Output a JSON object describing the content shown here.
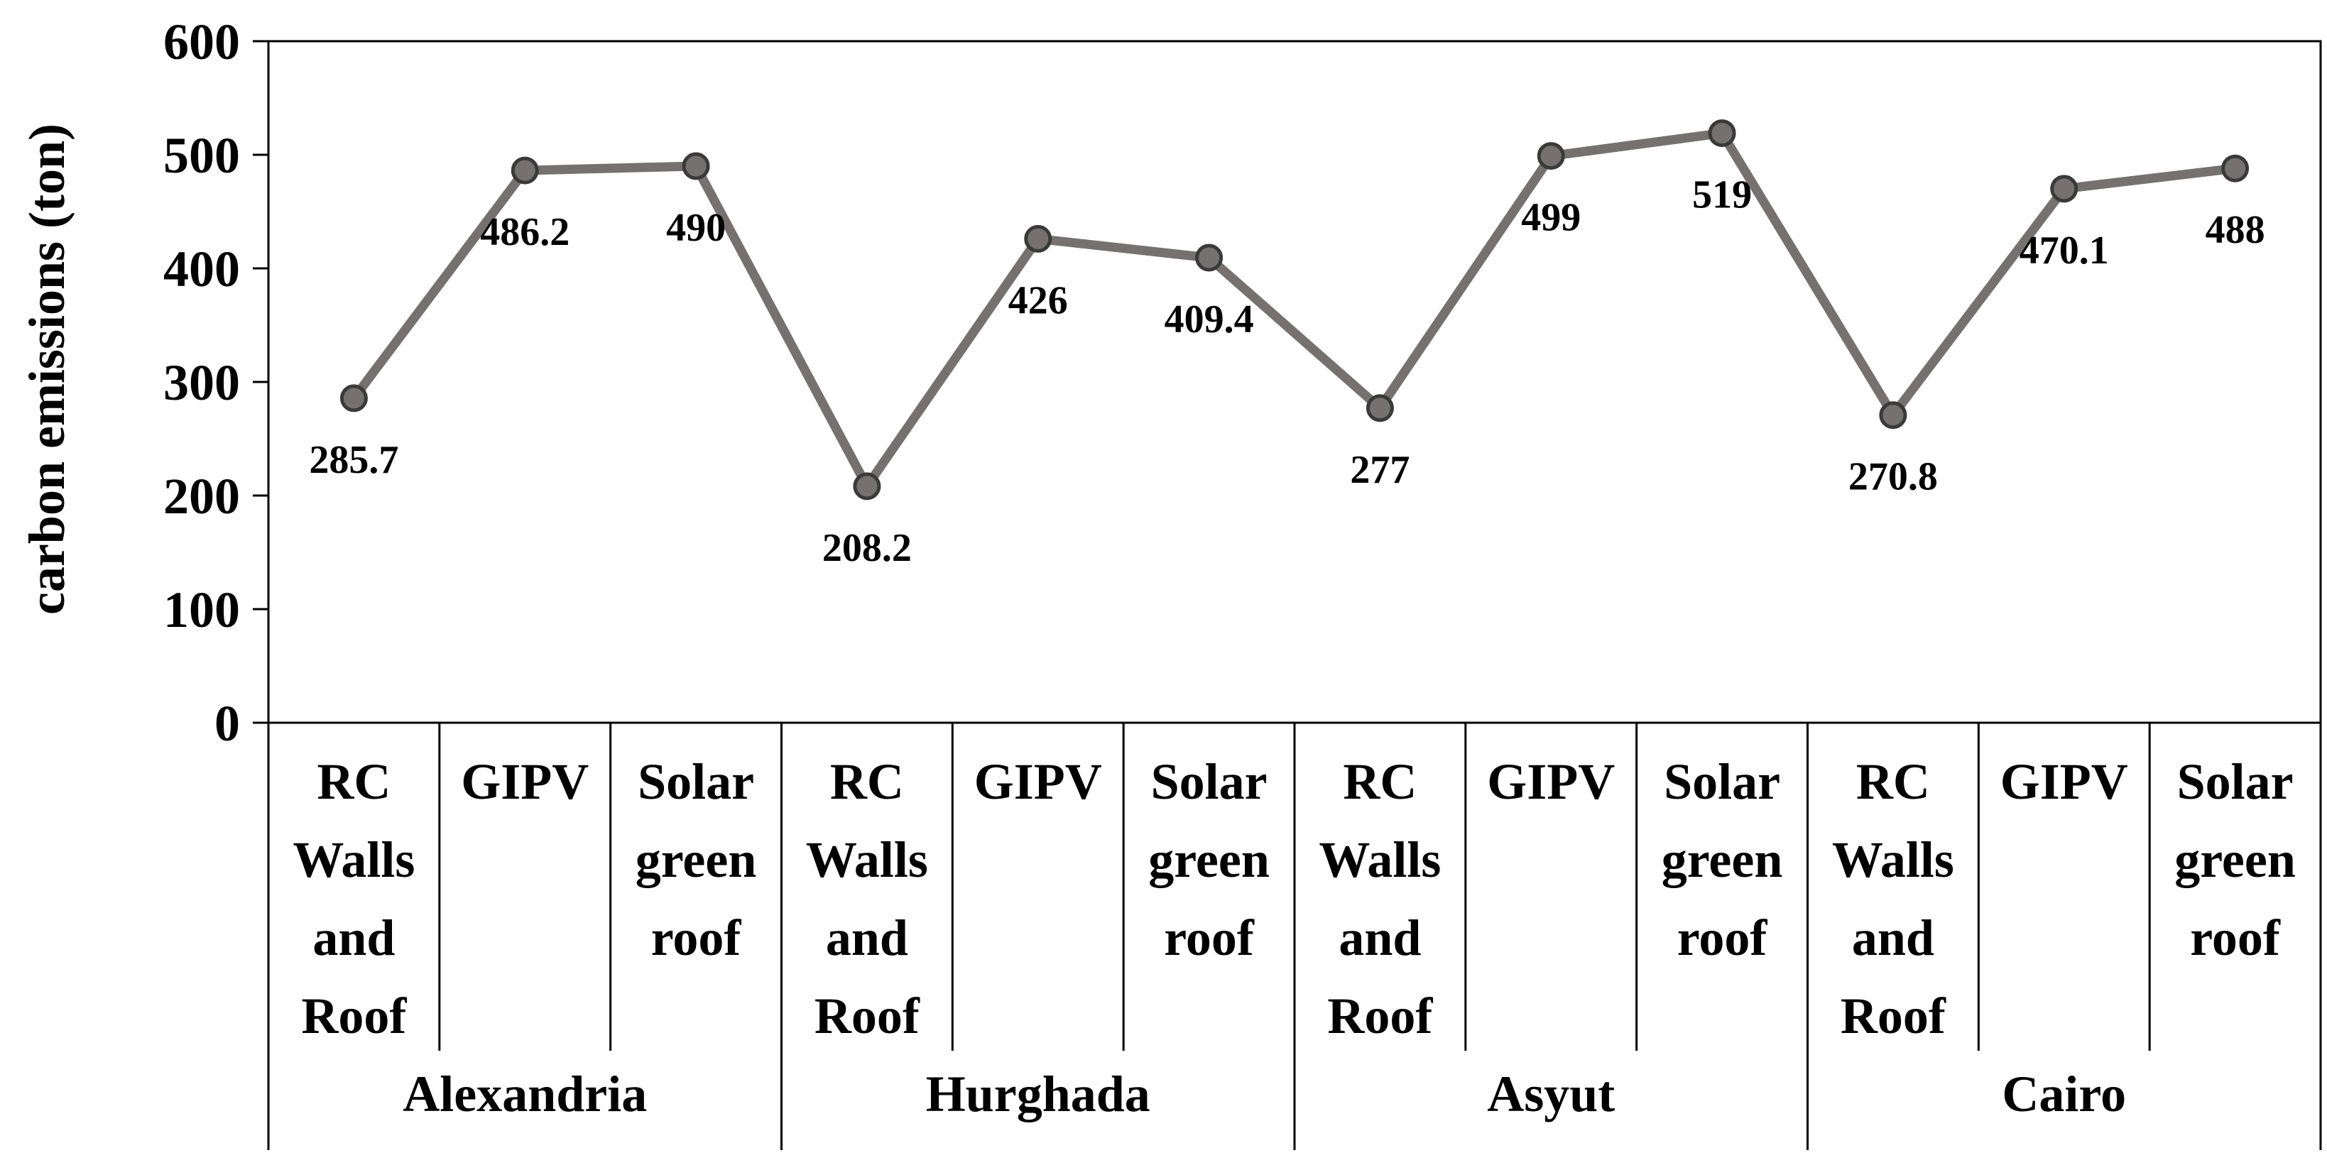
{
  "chart_data": {
    "type": "line",
    "title": "",
    "ylabel": "carbon emissions (ton)",
    "xlabel": "",
    "ylim": [
      0,
      600
    ],
    "yticks": [
      "0",
      "100",
      "200",
      "300",
      "400",
      "500",
      "600"
    ],
    "groups": [
      {
        "name": "Alexandria",
        "categories": [
          [
            "RC",
            "Walls",
            "and",
            "Roof"
          ],
          [
            "GIPV"
          ],
          [
            "Solar",
            "green",
            "roof"
          ]
        ]
      },
      {
        "name": "Hurghada",
        "categories": [
          [
            "RC",
            "Walls",
            "and",
            "Roof"
          ],
          [
            "GIPV"
          ],
          [
            "Solar",
            "green",
            "roof"
          ]
        ]
      },
      {
        "name": "Asyut",
        "categories": [
          [
            "RC",
            "Walls",
            "and",
            "Roof"
          ],
          [
            "GIPV"
          ],
          [
            "Solar",
            "green",
            "roof"
          ]
        ]
      },
      {
        "name": "Cairo",
        "categories": [
          [
            "RC",
            "Walls",
            "and",
            "Roof"
          ],
          [
            "GIPV"
          ],
          [
            "Solar",
            "green",
            "roof"
          ]
        ]
      }
    ],
    "values": [
      285.7,
      486.2,
      490,
      208.2,
      426,
      409.4,
      277,
      499,
      519,
      270.8,
      470.1,
      488
    ],
    "data_labels": [
      "285.7",
      "486.2",
      "490",
      "208.2",
      "426",
      "409.4",
      "277",
      "499",
      "519",
      "270.8",
      "470.1",
      "488"
    ],
    "label_positions": [
      "below",
      "below",
      "below",
      "below",
      "below",
      "below",
      "below",
      "below",
      "below",
      "below",
      "below",
      "below"
    ],
    "line_color": "#767171",
    "marker_fill": "#767171",
    "marker_stroke": "#3a3a3a",
    "grid": false,
    "legend": "none"
  }
}
